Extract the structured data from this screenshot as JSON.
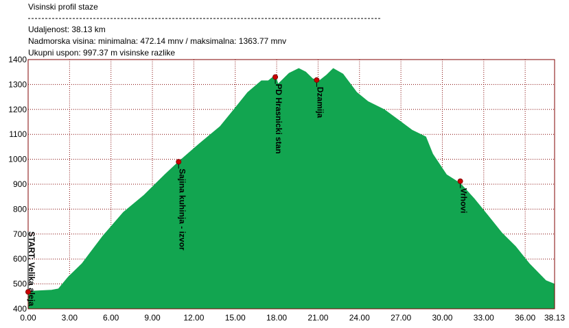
{
  "chart_data": {
    "type": "area",
    "title": "Visinski profil staze",
    "info": [
      "Udaljenost: 38.13 km",
      "Nadmorska visina:  minimalna: 472.14 mnv   /  maksimalna: 1363.77 mnv",
      "Ukupni uspon: 997.37 m visinske razlike"
    ],
    "color": "#12a550",
    "grid": true,
    "xlim": [
      0,
      38.13
    ],
    "ylim": [
      400,
      1400
    ],
    "xticks": [
      {
        "value": 0,
        "label": "0.00"
      },
      {
        "value": 3,
        "label": "3.00"
      },
      {
        "value": 6,
        "label": "6.00"
      },
      {
        "value": 9,
        "label": "9.00"
      },
      {
        "value": 12,
        "label": "12.00"
      },
      {
        "value": 15,
        "label": "15.00"
      },
      {
        "value": 18,
        "label": "18.00"
      },
      {
        "value": 21,
        "label": "21.00"
      },
      {
        "value": 24,
        "label": "24.00"
      },
      {
        "value": 27,
        "label": "27.00"
      },
      {
        "value": 30,
        "label": "30.00"
      },
      {
        "value": 33,
        "label": "33.00"
      },
      {
        "value": 36,
        "label": "36.00"
      },
      {
        "value": 38.13,
        "label": "38.13"
      }
    ],
    "yticks": [
      400,
      500,
      600,
      700,
      800,
      900,
      1000,
      1100,
      1200,
      1300,
      1400
    ],
    "x": [
      0,
      0.35,
      1.7,
      2.2,
      2.9,
      3.9,
      5.4,
      6.9,
      8.4,
      9.9,
      10.9,
      12.4,
      13.9,
      14.9,
      15.9,
      16.9,
      17.4,
      17.9,
      18.1,
      18.9,
      19.6,
      20.1,
      20.6,
      21.1,
      21.6,
      22.1,
      22.8,
      23.8,
      24.6,
      25.8,
      26.8,
      27.8,
      28.8,
      29.3,
      30.3,
      31.3,
      32.3,
      33.3,
      34.3,
      35.3,
      36.3,
      37.5,
      38.13
    ],
    "values": [
      466,
      471,
      475,
      480,
      527,
      581,
      691,
      787,
      856,
      938,
      990,
      1062,
      1131,
      1199,
      1268,
      1315,
      1315,
      1337,
      1301,
      1345,
      1364,
      1350,
      1323,
      1315,
      1337,
      1364,
      1342,
      1268,
      1232,
      1199,
      1158,
      1117,
      1090,
      1021,
      938,
      903,
      842,
      774,
      705,
      650,
      581,
      513,
      499
    ],
    "waypoints": [
      {
        "name": "START: Velika aleja",
        "x": 0,
        "y": 468
      },
      {
        "name": "Sajina kuhinja - izvor",
        "x": 10.9,
        "y": 990
      },
      {
        "name": "PD Hrasnicki stan",
        "x": 17.9,
        "y": 1330
      },
      {
        "name": "Dzamija",
        "x": 20.9,
        "y": 1318
      },
      {
        "name": "Vrhovi",
        "x": 31.3,
        "y": 912
      }
    ]
  }
}
